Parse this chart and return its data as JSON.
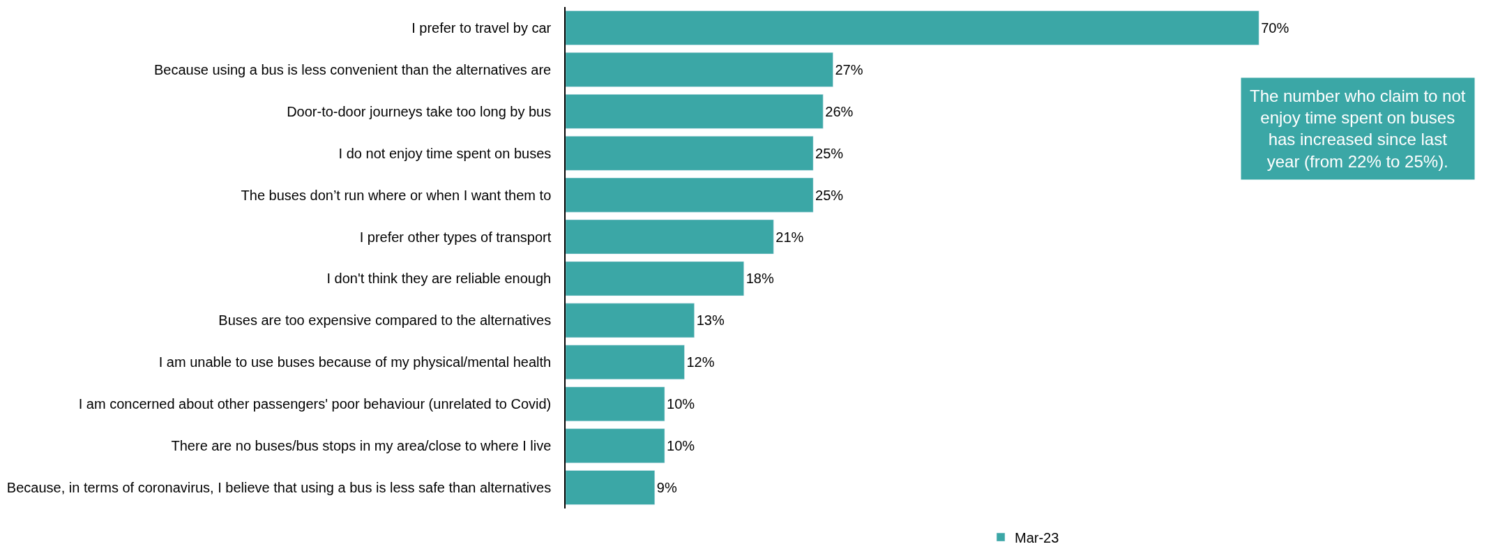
{
  "chart_data": {
    "type": "bar",
    "orientation": "horizontal",
    "categories": [
      "I prefer to travel by car",
      "Because using a bus is less convenient than the alternatives are",
      "Door-to-door journeys take too long by bus",
      "I do not enjoy time spent on buses",
      "The buses don’t run where or when I want them to",
      "I prefer other types of transport",
      "I don't think they are reliable enough",
      "Buses are too expensive compared to the alternatives",
      "I am unable to use buses because of my physical/mental health",
      "I am concerned about other passengers' poor behaviour (unrelated to Covid)",
      "There are no buses/bus stops in my area/close to where I live",
      "Because, in terms of coronavirus, I believe that using a bus is less safe than alternatives"
    ],
    "series": [
      {
        "name": "Mar-23",
        "color": "#3ba7a6",
        "values": [
          70,
          27,
          26,
          25,
          25,
          21,
          18,
          13,
          12,
          10,
          10,
          9
        ],
        "value_labels": [
          "70%",
          "27%",
          "26%",
          "25%",
          "25%",
          "21%",
          "18%",
          "13%",
          "12%",
          "10%",
          "10%",
          "9%"
        ]
      }
    ],
    "annotations": [
      "The number who claim to not enjoy time spent on buses has increased since last year (from 22% to 25%)."
    ],
    "legend": "bottom"
  }
}
